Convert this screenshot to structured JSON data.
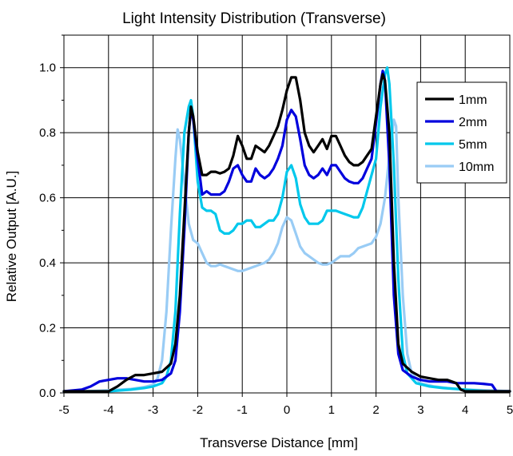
{
  "chart_data": {
    "type": "line",
    "title": "Light Intensity Distribution (Transverse)",
    "xlabel": "Transverse Distance  [mm]",
    "ylabel": "Relative Output  [A.U.]",
    "xlim": [
      -5,
      5
    ],
    "ylim": [
      0,
      1.1
    ],
    "xticks": [
      "-5",
      "-4",
      "-3",
      "-2",
      "-1",
      "0",
      "1",
      "2",
      "3",
      "4",
      "5"
    ],
    "yticks": [
      "0.0",
      "0.2",
      "0.4",
      "0.6",
      "0.8",
      "1.0"
    ],
    "grid": true,
    "legend_position": "top-right",
    "series": [
      {
        "name": "1mm",
        "color": "#000000",
        "points": [
          [
            -5,
            0.005
          ],
          [
            -4.5,
            0.005
          ],
          [
            -4.0,
            0.005
          ],
          [
            -3.8,
            0.02
          ],
          [
            -3.6,
            0.04
          ],
          [
            -3.4,
            0.055
          ],
          [
            -3.2,
            0.055
          ],
          [
            -3.0,
            0.06
          ],
          [
            -2.8,
            0.065
          ],
          [
            -2.6,
            0.09
          ],
          [
            -2.5,
            0.15
          ],
          [
            -2.4,
            0.3
          ],
          [
            -2.3,
            0.55
          ],
          [
            -2.2,
            0.8
          ],
          [
            -2.15,
            0.88
          ],
          [
            -2.1,
            0.85
          ],
          [
            -2.0,
            0.74
          ],
          [
            -1.9,
            0.67
          ],
          [
            -1.8,
            0.67
          ],
          [
            -1.7,
            0.68
          ],
          [
            -1.6,
            0.68
          ],
          [
            -1.5,
            0.675
          ],
          [
            -1.4,
            0.68
          ],
          [
            -1.3,
            0.69
          ],
          [
            -1.2,
            0.73
          ],
          [
            -1.1,
            0.79
          ],
          [
            -1.0,
            0.76
          ],
          [
            -0.9,
            0.72
          ],
          [
            -0.8,
            0.72
          ],
          [
            -0.7,
            0.76
          ],
          [
            -0.6,
            0.75
          ],
          [
            -0.5,
            0.74
          ],
          [
            -0.4,
            0.76
          ],
          [
            -0.3,
            0.79
          ],
          [
            -0.2,
            0.82
          ],
          [
            -0.1,
            0.87
          ],
          [
            0.0,
            0.93
          ],
          [
            0.1,
            0.97
          ],
          [
            0.2,
            0.97
          ],
          [
            0.3,
            0.9
          ],
          [
            0.4,
            0.8
          ],
          [
            0.5,
            0.76
          ],
          [
            0.6,
            0.74
          ],
          [
            0.7,
            0.76
          ],
          [
            0.8,
            0.78
          ],
          [
            0.9,
            0.75
          ],
          [
            1.0,
            0.79
          ],
          [
            1.1,
            0.79
          ],
          [
            1.2,
            0.76
          ],
          [
            1.3,
            0.73
          ],
          [
            1.4,
            0.71
          ],
          [
            1.5,
            0.7
          ],
          [
            1.6,
            0.7
          ],
          [
            1.7,
            0.71
          ],
          [
            1.8,
            0.73
          ],
          [
            1.9,
            0.75
          ],
          [
            2.0,
            0.85
          ],
          [
            2.1,
            0.95
          ],
          [
            2.15,
            0.98
          ],
          [
            2.2,
            0.96
          ],
          [
            2.3,
            0.8
          ],
          [
            2.4,
            0.4
          ],
          [
            2.5,
            0.15
          ],
          [
            2.6,
            0.09
          ],
          [
            2.8,
            0.065
          ],
          [
            3.0,
            0.05
          ],
          [
            3.2,
            0.045
          ],
          [
            3.4,
            0.04
          ],
          [
            3.6,
            0.04
          ],
          [
            3.7,
            0.035
          ],
          [
            3.8,
            0.03
          ],
          [
            3.9,
            0.01
          ],
          [
            4.0,
            0.005
          ],
          [
            4.5,
            0.005
          ],
          [
            5.0,
            0.005
          ]
        ]
      },
      {
        "name": "2mm",
        "color": "#0000dd",
        "points": [
          [
            -5,
            0.005
          ],
          [
            -4.6,
            0.01
          ],
          [
            -4.4,
            0.02
          ],
          [
            -4.2,
            0.035
          ],
          [
            -4.0,
            0.04
          ],
          [
            -3.8,
            0.045
          ],
          [
            -3.6,
            0.045
          ],
          [
            -3.4,
            0.04
          ],
          [
            -3.2,
            0.035
          ],
          [
            -3.0,
            0.035
          ],
          [
            -2.8,
            0.04
          ],
          [
            -2.6,
            0.06
          ],
          [
            -2.5,
            0.1
          ],
          [
            -2.4,
            0.25
          ],
          [
            -2.3,
            0.5
          ],
          [
            -2.2,
            0.8
          ],
          [
            -2.15,
            0.87
          ],
          [
            -2.1,
            0.84
          ],
          [
            -2.0,
            0.72
          ],
          [
            -1.9,
            0.61
          ],
          [
            -1.8,
            0.62
          ],
          [
            -1.7,
            0.61
          ],
          [
            -1.6,
            0.61
          ],
          [
            -1.5,
            0.61
          ],
          [
            -1.4,
            0.62
          ],
          [
            -1.3,
            0.65
          ],
          [
            -1.2,
            0.69
          ],
          [
            -1.1,
            0.7
          ],
          [
            -1.0,
            0.67
          ],
          [
            -0.9,
            0.65
          ],
          [
            -0.8,
            0.65
          ],
          [
            -0.7,
            0.69
          ],
          [
            -0.6,
            0.67
          ],
          [
            -0.5,
            0.66
          ],
          [
            -0.4,
            0.67
          ],
          [
            -0.3,
            0.69
          ],
          [
            -0.2,
            0.72
          ],
          [
            -0.1,
            0.76
          ],
          [
            0.0,
            0.84
          ],
          [
            0.1,
            0.87
          ],
          [
            0.2,
            0.85
          ],
          [
            0.3,
            0.78
          ],
          [
            0.4,
            0.7
          ],
          [
            0.5,
            0.67
          ],
          [
            0.6,
            0.66
          ],
          [
            0.7,
            0.67
          ],
          [
            0.8,
            0.69
          ],
          [
            0.9,
            0.67
          ],
          [
            1.0,
            0.7
          ],
          [
            1.1,
            0.7
          ],
          [
            1.2,
            0.68
          ],
          [
            1.3,
            0.66
          ],
          [
            1.4,
            0.65
          ],
          [
            1.5,
            0.645
          ],
          [
            1.6,
            0.645
          ],
          [
            1.7,
            0.66
          ],
          [
            1.8,
            0.69
          ],
          [
            1.9,
            0.72
          ],
          [
            2.0,
            0.83
          ],
          [
            2.1,
            0.95
          ],
          [
            2.15,
            0.99
          ],
          [
            2.2,
            0.96
          ],
          [
            2.3,
            0.7
          ],
          [
            2.4,
            0.3
          ],
          [
            2.5,
            0.12
          ],
          [
            2.6,
            0.07
          ],
          [
            2.8,
            0.05
          ],
          [
            3.0,
            0.04
          ],
          [
            3.2,
            0.035
          ],
          [
            3.4,
            0.035
          ],
          [
            3.6,
            0.035
          ],
          [
            3.8,
            0.03
          ],
          [
            4.0,
            0.03
          ],
          [
            4.2,
            0.03
          ],
          [
            4.4,
            0.028
          ],
          [
            4.6,
            0.025
          ],
          [
            4.7,
            0.005
          ],
          [
            5.0,
            0.005
          ]
        ]
      },
      {
        "name": "5mm",
        "color": "#00c8ec",
        "points": [
          [
            -5,
            0.005
          ],
          [
            -4.5,
            0.005
          ],
          [
            -4.0,
            0.005
          ],
          [
            -3.5,
            0.01
          ],
          [
            -3.2,
            0.015
          ],
          [
            -3.0,
            0.02
          ],
          [
            -2.8,
            0.03
          ],
          [
            -2.7,
            0.05
          ],
          [
            -2.6,
            0.1
          ],
          [
            -2.5,
            0.25
          ],
          [
            -2.4,
            0.55
          ],
          [
            -2.3,
            0.8
          ],
          [
            -2.2,
            0.88
          ],
          [
            -2.15,
            0.9
          ],
          [
            -2.1,
            0.85
          ],
          [
            -2.0,
            0.65
          ],
          [
            -1.9,
            0.57
          ],
          [
            -1.8,
            0.56
          ],
          [
            -1.7,
            0.56
          ],
          [
            -1.6,
            0.55
          ],
          [
            -1.5,
            0.5
          ],
          [
            -1.4,
            0.49
          ],
          [
            -1.3,
            0.49
          ],
          [
            -1.2,
            0.5
          ],
          [
            -1.1,
            0.52
          ],
          [
            -1.0,
            0.52
          ],
          [
            -0.9,
            0.53
          ],
          [
            -0.8,
            0.53
          ],
          [
            -0.7,
            0.51
          ],
          [
            -0.6,
            0.51
          ],
          [
            -0.5,
            0.52
          ],
          [
            -0.4,
            0.53
          ],
          [
            -0.3,
            0.53
          ],
          [
            -0.2,
            0.55
          ],
          [
            -0.1,
            0.6
          ],
          [
            0.0,
            0.68
          ],
          [
            0.1,
            0.7
          ],
          [
            0.2,
            0.66
          ],
          [
            0.3,
            0.58
          ],
          [
            0.4,
            0.54
          ],
          [
            0.5,
            0.52
          ],
          [
            0.6,
            0.52
          ],
          [
            0.7,
            0.52
          ],
          [
            0.8,
            0.53
          ],
          [
            0.9,
            0.56
          ],
          [
            1.0,
            0.56
          ],
          [
            1.1,
            0.56
          ],
          [
            1.2,
            0.555
          ],
          [
            1.3,
            0.55
          ],
          [
            1.4,
            0.545
          ],
          [
            1.5,
            0.54
          ],
          [
            1.6,
            0.54
          ],
          [
            1.7,
            0.57
          ],
          [
            1.8,
            0.62
          ],
          [
            1.9,
            0.67
          ],
          [
            2.0,
            0.72
          ],
          [
            2.1,
            0.88
          ],
          [
            2.2,
            0.98
          ],
          [
            2.25,
            1.0
          ],
          [
            2.3,
            0.95
          ],
          [
            2.4,
            0.7
          ],
          [
            2.5,
            0.35
          ],
          [
            2.6,
            0.12
          ],
          [
            2.7,
            0.06
          ],
          [
            2.9,
            0.03
          ],
          [
            3.2,
            0.02
          ],
          [
            3.5,
            0.015
          ],
          [
            4.0,
            0.01
          ],
          [
            4.5,
            0.005
          ],
          [
            5.0,
            0.005
          ]
        ]
      },
      {
        "name": "10mm",
        "color": "#99ccf5",
        "points": [
          [
            -5,
            0.005
          ],
          [
            -4.5,
            0.005
          ],
          [
            -4.0,
            0.008
          ],
          [
            -3.5,
            0.012
          ],
          [
            -3.2,
            0.018
          ],
          [
            -3.0,
            0.025
          ],
          [
            -2.9,
            0.045
          ],
          [
            -2.8,
            0.1
          ],
          [
            -2.7,
            0.25
          ],
          [
            -2.6,
            0.5
          ],
          [
            -2.5,
            0.72
          ],
          [
            -2.45,
            0.81
          ],
          [
            -2.4,
            0.78
          ],
          [
            -2.3,
            0.65
          ],
          [
            -2.2,
            0.52
          ],
          [
            -2.1,
            0.47
          ],
          [
            -2.0,
            0.46
          ],
          [
            -1.9,
            0.43
          ],
          [
            -1.8,
            0.4
          ],
          [
            -1.7,
            0.39
          ],
          [
            -1.6,
            0.39
          ],
          [
            -1.5,
            0.395
          ],
          [
            -1.4,
            0.39
          ],
          [
            -1.3,
            0.385
          ],
          [
            -1.2,
            0.38
          ],
          [
            -1.1,
            0.375
          ],
          [
            -1.0,
            0.375
          ],
          [
            -0.9,
            0.38
          ],
          [
            -0.8,
            0.385
          ],
          [
            -0.7,
            0.39
          ],
          [
            -0.6,
            0.395
          ],
          [
            -0.5,
            0.4
          ],
          [
            -0.4,
            0.41
          ],
          [
            -0.3,
            0.43
          ],
          [
            -0.2,
            0.46
          ],
          [
            -0.1,
            0.51
          ],
          [
            0.0,
            0.54
          ],
          [
            0.1,
            0.53
          ],
          [
            0.2,
            0.49
          ],
          [
            0.3,
            0.45
          ],
          [
            0.4,
            0.43
          ],
          [
            0.5,
            0.42
          ],
          [
            0.6,
            0.41
          ],
          [
            0.7,
            0.4
          ],
          [
            0.8,
            0.395
          ],
          [
            0.9,
            0.395
          ],
          [
            1.0,
            0.4
          ],
          [
            1.1,
            0.41
          ],
          [
            1.2,
            0.42
          ],
          [
            1.3,
            0.42
          ],
          [
            1.4,
            0.42
          ],
          [
            1.5,
            0.43
          ],
          [
            1.6,
            0.445
          ],
          [
            1.7,
            0.45
          ],
          [
            1.8,
            0.455
          ],
          [
            1.9,
            0.46
          ],
          [
            2.0,
            0.48
          ],
          [
            2.1,
            0.52
          ],
          [
            2.2,
            0.6
          ],
          [
            2.3,
            0.73
          ],
          [
            2.4,
            0.84
          ],
          [
            2.45,
            0.82
          ],
          [
            2.5,
            0.6
          ],
          [
            2.6,
            0.3
          ],
          [
            2.7,
            0.12
          ],
          [
            2.8,
            0.06
          ],
          [
            3.0,
            0.03
          ],
          [
            3.3,
            0.02
          ],
          [
            3.6,
            0.015
          ],
          [
            4.0,
            0.01
          ],
          [
            4.5,
            0.008
          ],
          [
            5.0,
            0.005
          ]
        ]
      }
    ]
  }
}
